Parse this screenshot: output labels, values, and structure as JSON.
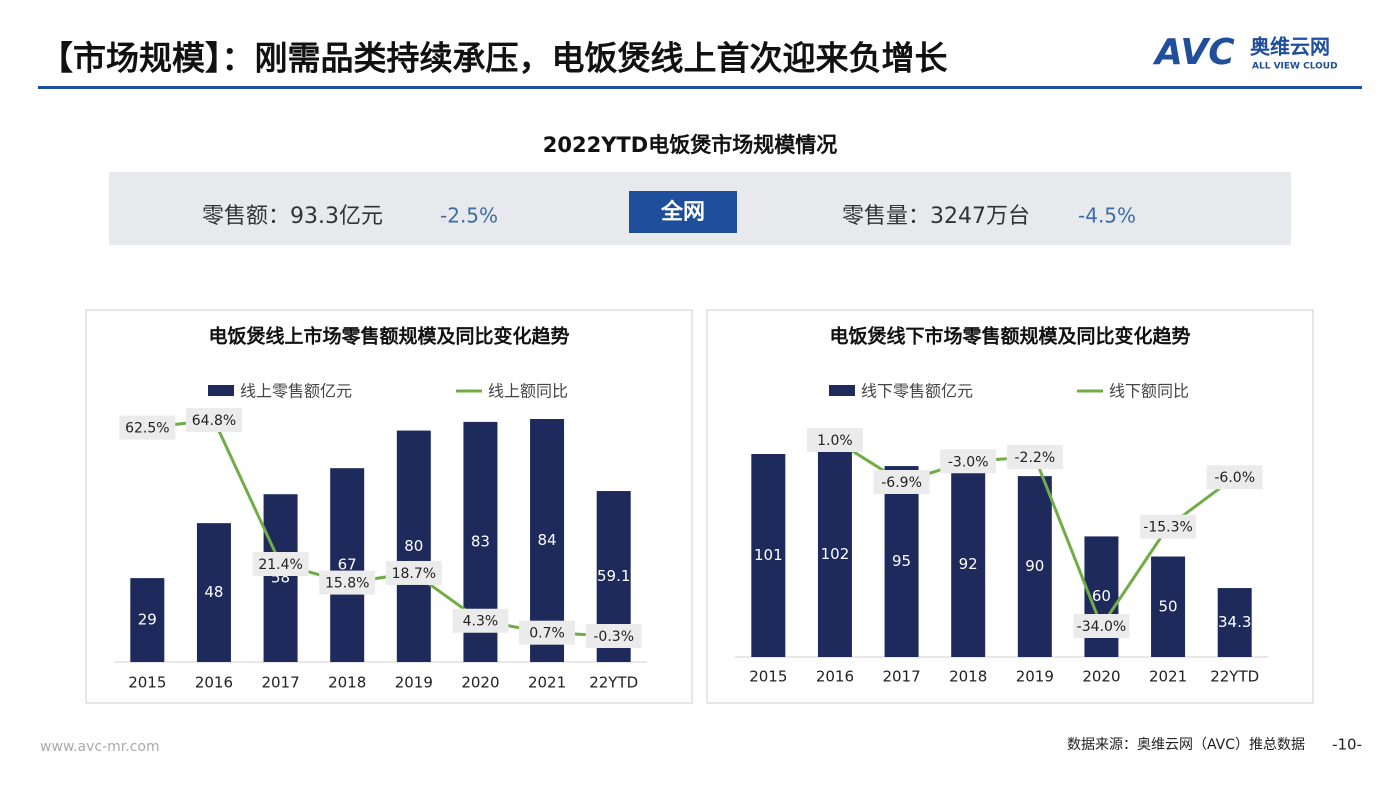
{
  "header": {
    "title": "【市场规模】：刚需品类持续承压，电饭煲线上首次迎来负增长",
    "logo": "AVC",
    "logo_cn": "奥维云网",
    "logo_en": "ALL VIEW CLOUD"
  },
  "section_title": "2022YTD电饭煲市场规模情况",
  "summary": {
    "sales_label": "零售额：93.3亿元",
    "sales_change": "-2.5%",
    "scope": "全网",
    "volume_label": "零售量：3247万台",
    "volume_change": "-4.5%"
  },
  "footer": {
    "website": "www.avc-mr.com",
    "source": "数据来源：奥维云网（AVC）推总数据",
    "page": "-10-"
  },
  "chart_data": [
    {
      "type": "bar-line",
      "title": "电饭煲线上市场零售额规模及同比变化趋势",
      "categories": [
        "2015",
        "2016",
        "2017",
        "2018",
        "2019",
        "2020",
        "2021",
        "22YTD"
      ],
      "series": [
        {
          "name": "线上零售额亿元",
          "type": "bar",
          "color": "#1f2a5c",
          "values": [
            29,
            48,
            58,
            67,
            80,
            83,
            84,
            59.1
          ]
        },
        {
          "name": "线上额同比",
          "type": "line",
          "color": "#70ad47",
          "values": [
            62.5,
            64.8,
            21.4,
            15.8,
            18.7,
            4.3,
            0.7,
            -0.3
          ],
          "value_labels": [
            "62.5%",
            "64.8%",
            "21.4%",
            "15.8%",
            "18.7%",
            "4.3%",
            "0.7%",
            "-0.3%"
          ]
        }
      ]
    },
    {
      "type": "bar-line",
      "title": "电饭煲线下市场零售额规模及同比变化趋势",
      "categories": [
        "2015",
        "2016",
        "2017",
        "2018",
        "2019",
        "2020",
        "2021",
        "22YTD"
      ],
      "series": [
        {
          "name": "线下零售额亿元",
          "type": "bar",
          "color": "#1f2a5c",
          "values": [
            101,
            102,
            95,
            92,
            90,
            60,
            50,
            34.3
          ]
        },
        {
          "name": "线下额同比",
          "type": "line",
          "color": "#70ad47",
          "values": [
            null,
            1.0,
            -6.9,
            -3.0,
            -2.2,
            -34.0,
            -15.3,
            -6.0
          ],
          "value_labels": [
            null,
            "1.0%",
            "-6.9%",
            "-3.0%",
            "-2.2%",
            "-34.0%",
            "-15.3%",
            "-6.0%"
          ]
        }
      ]
    }
  ]
}
